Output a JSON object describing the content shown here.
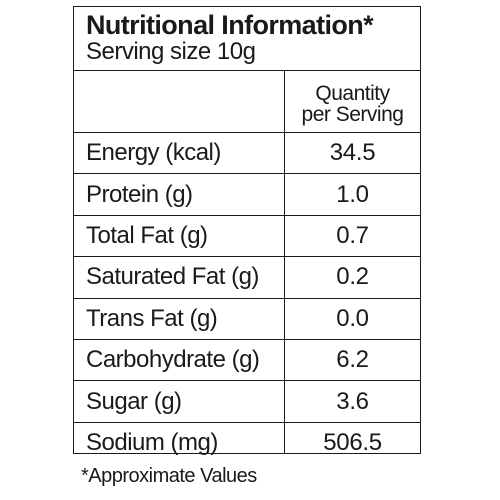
{
  "header": {
    "title": "Nutritional Information*",
    "serving_size": "Serving size 10g"
  },
  "table": {
    "column_header_line1": "Quantity",
    "column_header_line2": "per Serving",
    "rows": [
      {
        "label": "Energy (kcal)",
        "value": "34.5"
      },
      {
        "label": "Protein (g)",
        "value": "1.0"
      },
      {
        "label": "Total Fat (g)",
        "value": "0.7"
      },
      {
        "label": "Saturated Fat (g)",
        "value": "0.2"
      },
      {
        "label": "Trans Fat (g)",
        "value": "0.0"
      },
      {
        "label": "Carbohydrate (g)",
        "value": "6.2"
      },
      {
        "label": "Sugar (g)",
        "value": "3.6"
      },
      {
        "label": "Sodium (mg)",
        "value": "506.5"
      }
    ]
  },
  "footnote": "*Approximate Values"
}
